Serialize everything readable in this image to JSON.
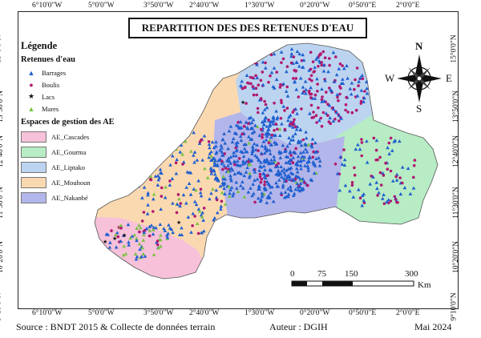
{
  "title": "REPARTITION DES DES RETENUES D'EAU",
  "legend": {
    "heading": "Légende",
    "reservoir_heading": "Retenues d'eau",
    "reservoir_items": [
      {
        "label": "Barrages",
        "symbol": "triangle",
        "color": "#1f5fcf"
      },
      {
        "label": "Boulis",
        "symbol": "dot",
        "color": "#b0186e"
      },
      {
        "label": "Lacs",
        "symbol": "star",
        "color": "#111111"
      },
      {
        "label": "Mares",
        "symbol": "triangle",
        "color": "#7ac143"
      }
    ],
    "zones_heading": "Espaces de gestion des AE",
    "zones": [
      {
        "label": "AE_Cascades",
        "color": "#f6c1d9"
      },
      {
        "label": "AE_Gourma",
        "color": "#b7ecc4"
      },
      {
        "label": "AE_Liptako",
        "color": "#bcd4f0"
      },
      {
        "label": "AE_Mouhoun",
        "color": "#fbd9b0"
      },
      {
        "label": "AE_Nakanbé",
        "color": "#b3b6ea"
      }
    ]
  },
  "grid": {
    "lon_labels": [
      "6°10'0\"W",
      "5°0'0\"W",
      "3°50'0\"W",
      "2°40'0\"W",
      "1°30'0\"W",
      "0°20'0\"W",
      "0°50'0\"E",
      "2°0'0\"E"
    ],
    "lat_labels": [
      "15°0'0\"N",
      "13°50'0\"N",
      "12°40'0\"N",
      "11°30'0\"N",
      "10°20'0\"N",
      "9°10'0\"N"
    ]
  },
  "scale_bar": {
    "ticks": [
      "0",
      "75",
      "150",
      "300"
    ],
    "unit": "Km"
  },
  "north_arrow": {
    "n": "N",
    "s": "S",
    "e": "E",
    "w": "W"
  },
  "footer": {
    "source": "Source : BNDT 2015 & Collecte de données terrain",
    "author": "Auteur : DGIH",
    "date": "Mai 2024"
  }
}
